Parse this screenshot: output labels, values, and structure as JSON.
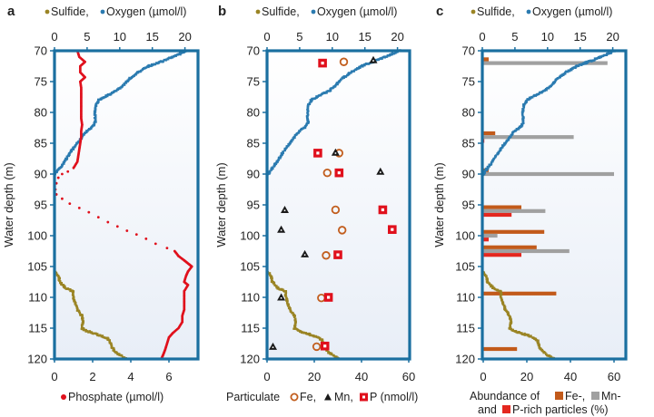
{
  "colors": {
    "frame": "#1a6fa0",
    "oxygen": "#2b7bb0",
    "sulfide": "#9a8424",
    "phosphate": "#e0101c",
    "fe": "#c25e1e",
    "mn": "#1a1a1a",
    "p": "#e0101c",
    "mn_bar": "#a0a0a0",
    "fe_bar": "#c25a1a",
    "p_bar": "#e4271f"
  },
  "chart_data": [
    {
      "panel": "a",
      "type": "scatter",
      "panel_label": "a",
      "top_legend": {
        "sulfide": "Sulfide,",
        "oxygen": "Oxygen (µmol/l)"
      },
      "top_axis": {
        "ticks": [
          "0",
          "5",
          "10",
          "15",
          "20"
        ],
        "range": [
          0,
          22
        ]
      },
      "ylabel": "Water depth (m)",
      "yticks": [
        "70",
        "75",
        "80",
        "85",
        "90",
        "95",
        "100",
        "105",
        "110",
        "115",
        "120"
      ],
      "ylim": [
        70,
        120
      ],
      "bottom_axis": {
        "ticks": [
          "0",
          "2",
          "4",
          "6"
        ],
        "range": [
          0,
          7.5
        ],
        "label": "Phosphate (µmol/l)"
      },
      "series": [
        {
          "name": "Oxygen",
          "axis": "top",
          "points": [
            [
              20.3,
              70
            ],
            [
              19,
              70.6
            ],
            [
              17,
              71.5
            ],
            [
              14.5,
              72.5
            ],
            [
              13,
              73.4
            ],
            [
              11.5,
              74.5
            ],
            [
              10.5,
              75.7
            ],
            [
              9.5,
              76.5
            ],
            [
              8,
              77.3
            ],
            [
              6.8,
              78
            ],
            [
              6.3,
              79
            ],
            [
              6.2,
              80.5
            ],
            [
              6.3,
              81.5
            ],
            [
              6,
              82.2
            ],
            [
              5,
              83
            ],
            [
              4.2,
              84
            ],
            [
              3.5,
              85
            ],
            [
              2.8,
              86
            ],
            [
              2,
              87.2
            ],
            [
              1.2,
              88.5
            ],
            [
              0.5,
              89.5
            ],
            [
              0,
              90.2
            ]
          ]
        },
        {
          "name": "Sulfide",
          "axis": "top",
          "points": [
            [
              0,
              105.8
            ],
            [
              0.6,
              106.5
            ],
            [
              0.8,
              107.5
            ],
            [
              1.7,
              108.5
            ],
            [
              2.8,
              109
            ],
            [
              2.9,
              110
            ],
            [
              3.2,
              111
            ],
            [
              3.5,
              112
            ],
            [
              4.2,
              113
            ],
            [
              4.4,
              114
            ],
            [
              4.2,
              115
            ],
            [
              5,
              115.5
            ],
            [
              6.5,
              116
            ],
            [
              7.8,
              116.5
            ],
            [
              8.5,
              117
            ],
            [
              8.7,
              118
            ],
            [
              9.5,
              119
            ],
            [
              11,
              120
            ]
          ]
        },
        {
          "name": "Phosphate",
          "axis": "bottom",
          "points": [
            [
              1.2,
              70
            ],
            [
              1.3,
              71
            ],
            [
              1.6,
              71.8
            ],
            [
              1.35,
              72.5
            ],
            [
              1.35,
              73.5
            ],
            [
              1.6,
              74.3
            ],
            [
              1.35,
              75
            ],
            [
              1.4,
              76
            ],
            [
              1.4,
              77
            ],
            [
              1.4,
              78
            ],
            [
              1.4,
              79
            ],
            [
              1.4,
              80
            ],
            [
              1.4,
              81
            ],
            [
              1.45,
              82
            ],
            [
              1.4,
              83
            ],
            [
              1.4,
              84
            ],
            [
              1.35,
              85
            ],
            [
              1.3,
              86
            ],
            [
              1.25,
              87
            ],
            [
              1.2,
              88
            ],
            [
              1.0,
              89
            ],
            [
              0.7,
              89.6
            ],
            [
              0.4,
              90
            ],
            [
              0.2,
              90.6
            ],
            [
              0.1,
              91.5
            ],
            [
              0.05,
              92.5
            ],
            [
              0.1,
              93.3
            ],
            [
              0.4,
              94
            ],
            [
              0.8,
              94.8
            ],
            [
              1.3,
              95.5
            ],
            [
              1.8,
              96.2
            ],
            [
              2.3,
              97
            ],
            [
              2.8,
              97.8
            ],
            [
              3.3,
              98.5
            ],
            [
              3.8,
              99.2
            ],
            [
              4.3,
              99.8
            ],
            [
              4.8,
              100.5
            ],
            [
              5.3,
              101.3
            ],
            [
              5.9,
              102
            ],
            [
              6.3,
              102.5
            ],
            [
              6.5,
              103.3
            ],
            [
              6.8,
              104
            ],
            [
              7.0,
              104.5
            ],
            [
              7.2,
              105
            ],
            [
              7.0,
              105.8
            ],
            [
              6.9,
              106.5
            ],
            [
              6.8,
              107.5
            ],
            [
              7.0,
              108
            ],
            [
              6.8,
              109
            ],
            [
              6.8,
              110
            ],
            [
              6.8,
              111
            ],
            [
              6.8,
              112
            ],
            [
              6.7,
              113
            ],
            [
              6.7,
              114
            ],
            [
              6.5,
              115
            ],
            [
              6.2,
              115.8
            ],
            [
              6.0,
              116.5
            ],
            [
              5.9,
              117.5
            ],
            [
              5.8,
              118.5
            ],
            [
              5.7,
              119.3
            ],
            [
              5.6,
              120
            ]
          ]
        }
      ]
    },
    {
      "panel": "b",
      "type": "scatter",
      "panel_label": "b",
      "top_legend": {
        "sulfide": "Sulfide,",
        "oxygen": "Oxygen (µmol/l)"
      },
      "top_axis": {
        "ticks": [
          "0",
          "5",
          "10",
          "15",
          "20"
        ],
        "range": [
          0,
          22
        ]
      },
      "ylabel": "Water depth (m)",
      "yticks": [
        "70",
        "75",
        "80",
        "85",
        "90",
        "95",
        "100",
        "105",
        "110",
        "115",
        "120"
      ],
      "ylim": [
        70,
        120
      ],
      "bottom_axis": {
        "ticks": [
          "0",
          "20",
          "40",
          "60"
        ],
        "range": [
          0,
          60
        ],
        "label_prefix": "Particulate",
        "fe": "Fe,",
        "mn": "Mn,",
        "p": "P (nmol/l)"
      },
      "series": [
        {
          "name": "Fe",
          "marker": "circle",
          "points": [
            [
              32.5,
              71.8
            ],
            [
              30.5,
              86.6
            ],
            [
              25.5,
              89.8
            ],
            [
              29,
              95.8
            ],
            [
              31.8,
              99.1
            ],
            [
              25,
              103.2
            ],
            [
              23,
              110.1
            ],
            [
              21,
              118
            ]
          ]
        },
        {
          "name": "Mn",
          "marker": "triangle",
          "points": [
            [
              45,
              71.5
            ],
            [
              29,
              86.5
            ],
            [
              48,
              89.6
            ],
            [
              7.5,
              95.8
            ],
            [
              6,
              99
            ],
            [
              16,
              103
            ],
            [
              6,
              110
            ],
            [
              2.5,
              118
            ]
          ]
        },
        {
          "name": "P",
          "marker": "square",
          "points": [
            [
              23.5,
              72
            ],
            [
              21.5,
              86.6
            ],
            [
              30.5,
              89.8
            ],
            [
              49,
              95.8
            ],
            [
              53,
              99
            ],
            [
              30,
              103.1
            ],
            [
              26,
              110
            ],
            [
              24.5,
              117.9
            ]
          ]
        }
      ]
    },
    {
      "panel": "c",
      "type": "bar",
      "panel_label": "c",
      "top_legend": {
        "sulfide": "Sulfide,",
        "oxygen": "Oxygen (µmol/l)"
      },
      "top_axis": {
        "ticks": [
          "0",
          "5",
          "10",
          "15",
          "20"
        ],
        "range": [
          0,
          22
        ]
      },
      "ylabel": "Water depth (m)",
      "yticks": [
        "70",
        "75",
        "80",
        "85",
        "90",
        "95",
        "100",
        "105",
        "110",
        "115",
        "120"
      ],
      "ylim": [
        70,
        120
      ],
      "bottom_axis": {
        "ticks": [
          "0",
          "20",
          "40",
          "60"
        ],
        "range": [
          0,
          65
        ],
        "label_line1": "Abundance of",
        "fe": "Fe-,",
        "mn": "Mn-",
        "label_line2": "and",
        "p": "P-rich particles (%)"
      },
      "categories_depth_m": [
        72,
        84,
        90,
        96,
        100,
        102.5,
        110,
        119
      ],
      "series": [
        {
          "name": "Fe-rich",
          "values": [
            2.5,
            5.5,
            2.5,
            17.5,
            28,
            24.5,
            33.5,
            15.5
          ]
        },
        {
          "name": "Mn-rich",
          "values": [
            57,
            41.5,
            60,
            28.5,
            6.5,
            39.5,
            0,
            0
          ]
        },
        {
          "name": "P-rich",
          "values": [
            0,
            0.5,
            0,
            13,
            2.5,
            17.5,
            0,
            0
          ]
        }
      ]
    }
  ]
}
